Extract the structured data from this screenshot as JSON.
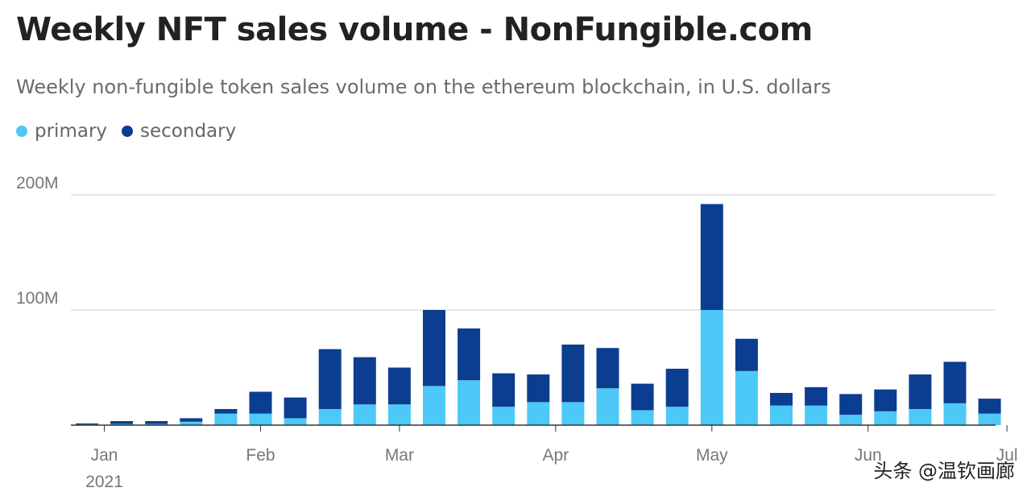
{
  "title": "Weekly NFT sales volume - NonFungible.com",
  "subtitle": "Weekly non-fungible token sales volume on the ethereum blockchain, in U.S. dollars",
  "legend": {
    "primary": {
      "label": "primary",
      "color": "#4cc9f6"
    },
    "secondary": {
      "label": "secondary",
      "color": "#0b3d91"
    }
  },
  "watermark": "头条 @温钦画廊",
  "chart_data": {
    "type": "bar",
    "stacked": true,
    "title": "Weekly NFT sales volume - NonFungible.com",
    "subtitle": "Weekly non-fungible token sales volume on the ethereum blockchain, in U.S. dollars",
    "xlabel": "",
    "ylabel": "",
    "ylim": [
      0,
      200
    ],
    "y_unit": "M",
    "y_ticks": [
      {
        "value": 100,
        "label": "100M"
      },
      {
        "value": 200,
        "label": "200M"
      }
    ],
    "x_ticks": [
      {
        "week_index": 0.5,
        "label": "Jan",
        "sublabel": "2021"
      },
      {
        "week_index": 5,
        "label": "Feb",
        "sublabel": ""
      },
      {
        "week_index": 9,
        "label": "Mar",
        "sublabel": ""
      },
      {
        "week_index": 13.5,
        "label": "Apr",
        "sublabel": ""
      },
      {
        "week_index": 18,
        "label": "May",
        "sublabel": ""
      },
      {
        "week_index": 22.5,
        "label": "Jun",
        "sublabel": ""
      },
      {
        "week_index": 26.5,
        "label": "Jul",
        "sublabel": ""
      }
    ],
    "grid": true,
    "legend_position": "top-left",
    "series": [
      {
        "name": "primary",
        "color": "#4cc9f6",
        "values": [
          0.5,
          1,
          1,
          3,
          10,
          10,
          6,
          14,
          18,
          18,
          34,
          39,
          16,
          20,
          20,
          32,
          13,
          16,
          100,
          47,
          17,
          17,
          9,
          12,
          14,
          19,
          10
        ]
      },
      {
        "name": "secondary",
        "color": "#0b3d91",
        "values": [
          1,
          2.5,
          2.5,
          3,
          4,
          19,
          18,
          52,
          41,
          32,
          66,
          45,
          29,
          24,
          50,
          35,
          23,
          33,
          92,
          28,
          11,
          16,
          18,
          19,
          30,
          36,
          13
        ]
      }
    ]
  }
}
